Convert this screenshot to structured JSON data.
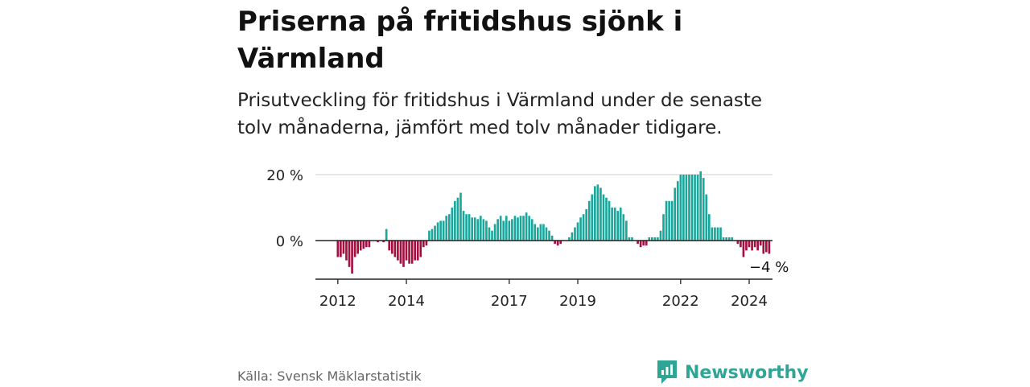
{
  "title": "Priserna på fritidshus sjönk i Värmland",
  "subtitle": "Prisutveckling för fritidshus i Värmland under de senaste tolv månaderna, jämfört med tolv månader tidigare.",
  "source": "Källa: Svensk Mäklarstatistik",
  "brand": {
    "name": "Newsworthy",
    "icon": "newsworthy-logo-icon"
  },
  "colors": {
    "positive": "#1aa79b",
    "negative": "#a30f3f",
    "axis": "#222222",
    "grid": "#d8d8d8"
  },
  "chart_data": {
    "type": "bar",
    "title": "Priserna på fritidshus sjönk i Värmland",
    "xlabel": "",
    "ylabel": "",
    "x_start": "2012-01",
    "ylim": [
      -12,
      22
    ],
    "yticks": [
      0,
      20
    ],
    "ytick_labels": [
      "0 %",
      "20 %"
    ],
    "grid": true,
    "xticks": [
      {
        "year": 2012,
        "label": "2012"
      },
      {
        "year": 2014,
        "label": "2014"
      },
      {
        "year": 2017,
        "label": "2017"
      },
      {
        "year": 2019,
        "label": "2019"
      },
      {
        "year": 2022,
        "label": "2022"
      },
      {
        "year": 2024,
        "label": "2024"
      }
    ],
    "last_value_label": "−4 %",
    "values": [
      -5,
      -5,
      -4,
      -6,
      -8,
      -10,
      -5,
      -4,
      -3,
      -2.5,
      -2,
      -2,
      0,
      0,
      -0.5,
      0,
      -0.5,
      3.5,
      -3,
      -4,
      -5,
      -6,
      -7,
      -8,
      -6,
      -7,
      -7,
      -6,
      -6,
      -5,
      -2,
      -1.5,
      3,
      3.5,
      4.5,
      5.5,
      6,
      6,
      7.5,
      8,
      10,
      12,
      13,
      14.5,
      9,
      8,
      8,
      7,
      7,
      6.5,
      7.5,
      6.5,
      6,
      4,
      3,
      5,
      6.5,
      7.5,
      6,
      7.5,
      6,
      6.5,
      7.5,
      7,
      7.5,
      7.5,
      8.5,
      7.5,
      6.5,
      5,
      4,
      5,
      5,
      4,
      3,
      1.5,
      -1,
      -1.5,
      -1,
      0,
      0,
      1,
      2.5,
      4,
      5.5,
      7,
      8,
      9.5,
      12,
      14,
      16.5,
      17,
      16,
      14,
      13,
      12,
      10,
      10,
      9,
      10,
      8,
      6,
      1,
      1,
      0,
      -1,
      -2,
      -1.5,
      -1.5,
      1,
      1,
      1,
      1,
      3,
      8,
      12,
      12,
      12,
      16,
      18,
      20,
      20,
      20,
      20,
      20,
      20,
      20,
      21,
      19,
      14,
      8,
      4,
      4,
      4,
      4,
      1,
      1,
      1,
      1,
      0,
      -1,
      -2,
      -5,
      -3,
      -2,
      -3,
      -2,
      -3,
      -1.5,
      -4,
      -3.5,
      -4
    ]
  }
}
